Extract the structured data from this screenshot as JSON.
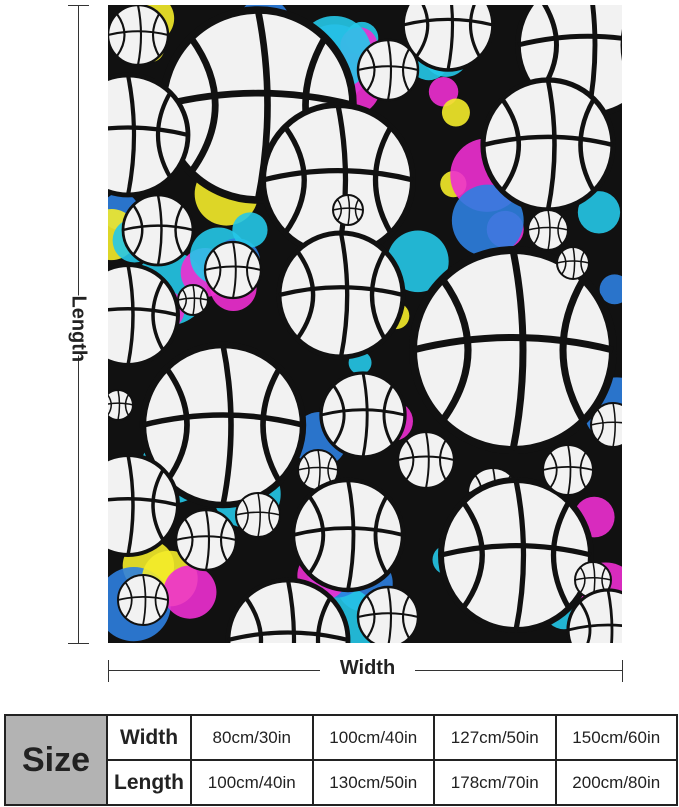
{
  "dimensions": {
    "length_label": "Length",
    "width_label": "Width"
  },
  "size_table": {
    "size_label": "Size",
    "rows": [
      {
        "label": "Width",
        "values": [
          "80cm/30in",
          "100cm/40in",
          "127cm/50in",
          "150cm/60in"
        ]
      },
      {
        "label": "Length",
        "values": [
          "100cm/40in",
          "130cm/50in",
          "178cm/70in",
          "200cm/80in"
        ]
      }
    ]
  },
  "colors": {
    "splash": [
      "#25c8e8",
      "#ee2fd2",
      "#f4ec2a",
      "#2d7fe0",
      "#111111"
    ]
  }
}
